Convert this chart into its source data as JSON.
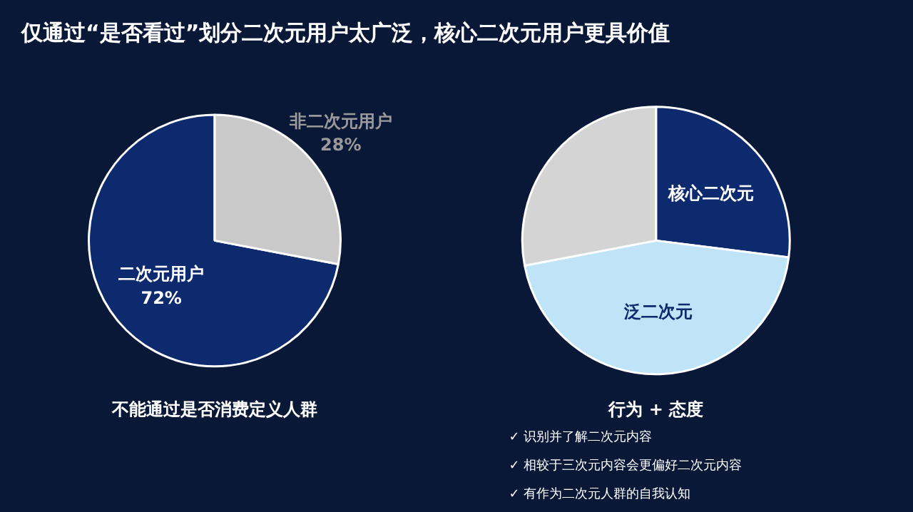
{
  "chart_data": [
    {
      "type": "pie",
      "title": "仅通过“是否看过”划分二次元用户太广泛，核心二次元用户更具价值",
      "categories": [
        "二次元用户",
        "非二次元用户"
      ],
      "values": [
        72,
        28
      ],
      "colors": [
        "#0e2a6e",
        "#c9c9c9"
      ],
      "value_labels": [
        "72%",
        "28%"
      ],
      "annotations": [
        "不能通过是否消费定义人群"
      ]
    },
    {
      "type": "pie",
      "categories": [
        "核心二次元",
        "泛二次元",
        null
      ],
      "values": [
        27,
        45,
        28
      ],
      "colors": [
        "#0e2a6e",
        "#bfe3f7",
        "#d4d4d4"
      ],
      "annotations": [
        "行为 + 态度",
        "✓  识别并了解二次元内容",
        "✓  相较于三次元内容会更偏好二次元内容",
        "✓  有作为二次元人群的自我认知"
      ]
    }
  ]
}
